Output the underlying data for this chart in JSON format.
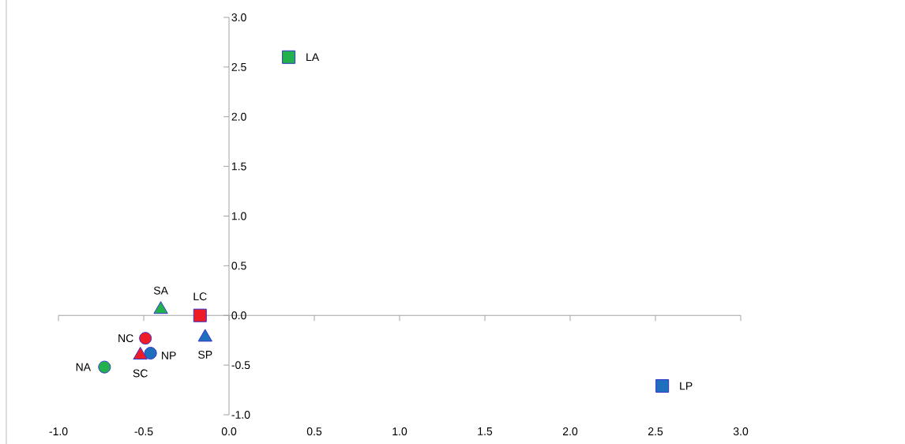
{
  "chart_data": {
    "type": "scatter",
    "xlim": [
      -1,
      3
    ],
    "ylim": [
      -1,
      3
    ],
    "xticks": [
      {
        "value": -1,
        "label": "-1.0"
      },
      {
        "value": -0.5,
        "label": "-0.5"
      },
      {
        "value": 0,
        "label": "0.0"
      },
      {
        "value": 0.5,
        "label": "0.5"
      },
      {
        "value": 1,
        "label": "1.0"
      },
      {
        "value": 1.5,
        "label": "1.5"
      },
      {
        "value": 2,
        "label": "2.0"
      },
      {
        "value": 2.5,
        "label": "2.5"
      },
      {
        "value": 3,
        "label": "3.0"
      }
    ],
    "yticks": [
      {
        "value": -1,
        "label": "-1.0"
      },
      {
        "value": -0.5,
        "label": "-0.5"
      },
      {
        "value": 0,
        "label": "0.0"
      },
      {
        "value": 0.5,
        "label": "0.5"
      },
      {
        "value": 1,
        "label": "1.0"
      },
      {
        "value": 1.5,
        "label": "1.5"
      },
      {
        "value": 2,
        "label": "2.0"
      },
      {
        "value": 2.5,
        "label": "2.5"
      },
      {
        "value": 3,
        "label": "3.0"
      }
    ],
    "series": [
      {
        "name": "LA",
        "color": "#22b14c",
        "marker": "square",
        "x": [
          0.35
        ],
        "values": [
          2.6
        ]
      },
      {
        "name": "LP",
        "color": "#1f6fbf",
        "marker": "square",
        "x": [
          2.54
        ],
        "values": [
          -0.71
        ]
      },
      {
        "name": "LC",
        "color": "#ee1c24",
        "marker": "square",
        "x": [
          -0.17
        ],
        "values": [
          0.0
        ]
      },
      {
        "name": "SA",
        "color": "#22b14c",
        "marker": "triangle",
        "x": [
          -0.4
        ],
        "values": [
          0.06
        ]
      },
      {
        "name": "SP",
        "color": "#1f6fbf",
        "marker": "triangle",
        "x": [
          -0.14
        ],
        "values": [
          -0.22
        ]
      },
      {
        "name": "NC",
        "color": "#ee1c24",
        "marker": "circle",
        "x": [
          -0.49
        ],
        "values": [
          -0.23
        ]
      },
      {
        "name": "NP",
        "color": "#1f6fbf",
        "marker": "circle",
        "x": [
          -0.46
        ],
        "values": [
          -0.38
        ]
      },
      {
        "name": "SC",
        "color": "#ee1c24",
        "marker": "triangle",
        "x": [
          -0.52
        ],
        "values": [
          -0.4
        ]
      },
      {
        "name": "NA",
        "color": "#22b14c",
        "marker": "circle",
        "x": [
          -0.73
        ],
        "values": [
          -0.52
        ]
      }
    ]
  }
}
